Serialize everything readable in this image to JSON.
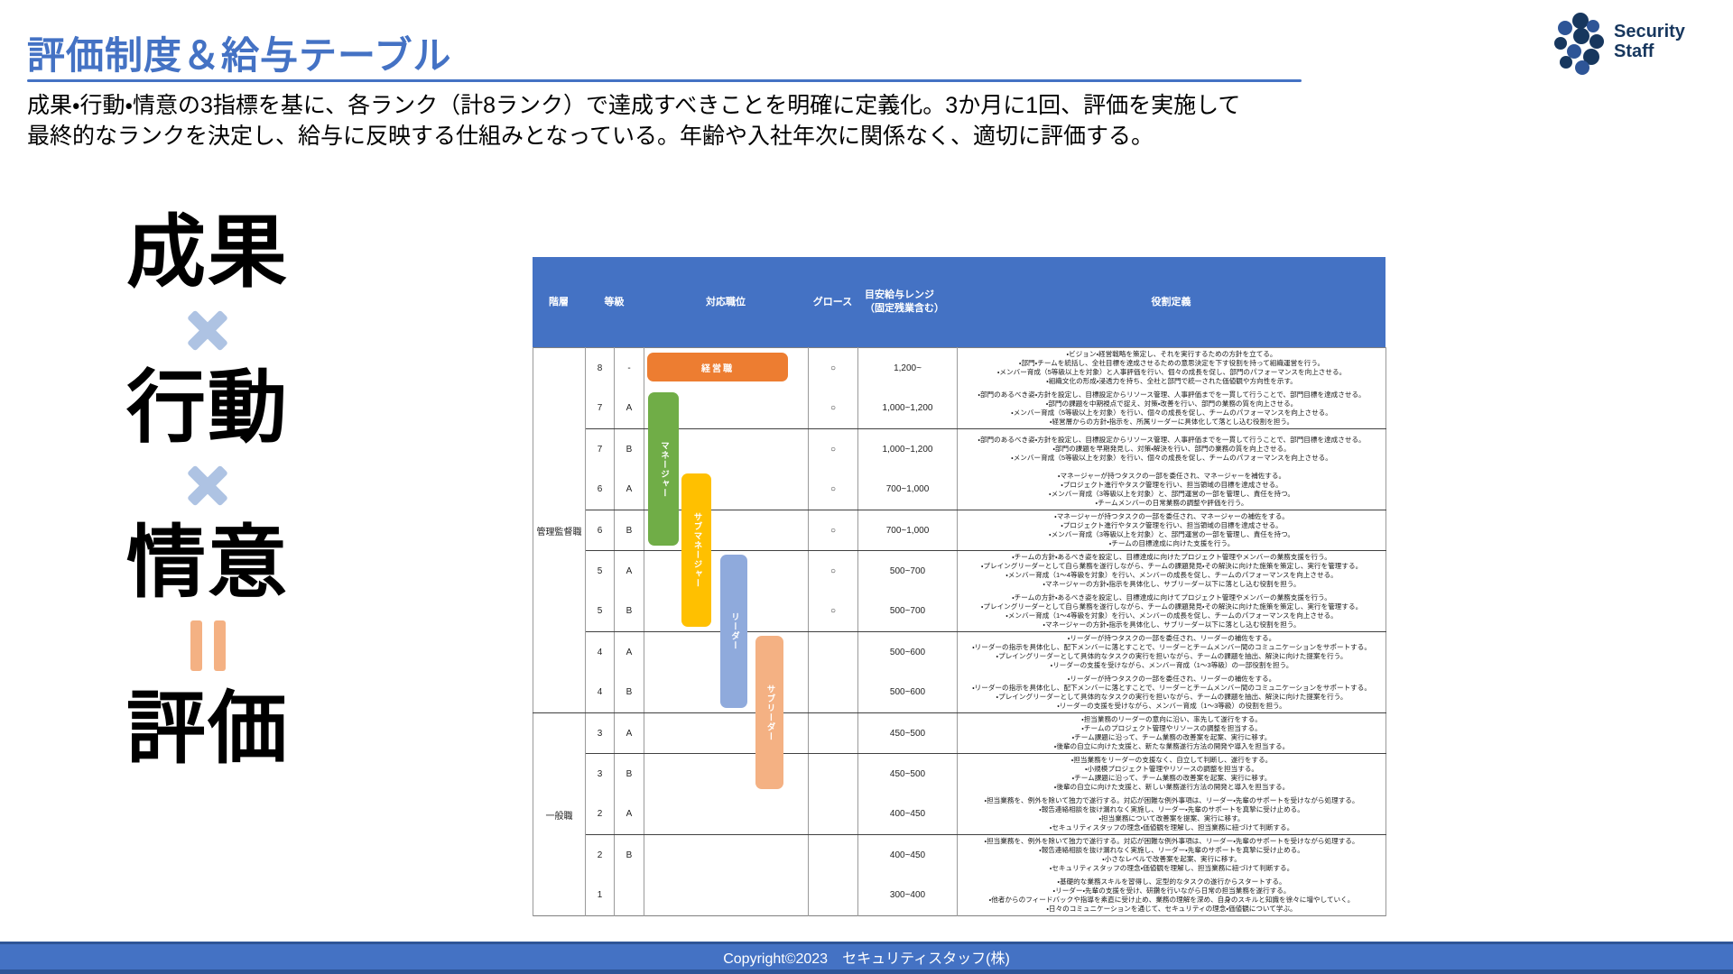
{
  "slide": {
    "title": "評価制度＆給与テーブル",
    "description_line1": "成果・行動・情意の3指標を基に、各ランク（計8ランク）で達成すべきことを明確に定義化。3か月に1回、評価を実施して",
    "description_line2": "最終的なランクを決定し、給与に反映する仕組みとなっている。年齢や入社年次に関係なく、適切に評価する。",
    "footer_text": "Copyright©2023　セキュリティスタッフ(株)"
  },
  "logo": {
    "line1": "Security",
    "line2": "Staff"
  },
  "colors": {
    "accent_blue": "#4472C4",
    "dark_blue": "#2E5597",
    "navy": "#17375E",
    "orange": "#ED7D31",
    "green": "#70AD47",
    "yellow": "#FFC000",
    "light_blue": "#8FAADC",
    "salmon": "#F4B183",
    "motif_cross": "#AEC3E3",
    "motif_equals": "#F4B183"
  },
  "motif": {
    "items": [
      {
        "kind": "term",
        "text": "成果"
      },
      {
        "kind": "icon",
        "name": "multiply-icon",
        "symbol": "✕"
      },
      {
        "kind": "term",
        "text": "行動"
      },
      {
        "kind": "icon",
        "name": "multiply-icon",
        "symbol": "✕"
      },
      {
        "kind": "term",
        "text": "情意"
      },
      {
        "kind": "icon",
        "name": "equals-icon",
        "symbol": "＝"
      },
      {
        "kind": "term",
        "text": "評価"
      }
    ]
  },
  "table": {
    "headers": {
      "tier": "階層",
      "grade": "等級",
      "position": "対応職位",
      "growth": "グロース",
      "salary_line1": "目安給与レンジ",
      "salary_line2": "（固定残業含む）",
      "role": "役割定義"
    },
    "tiers": [
      {
        "label": "管理監督職",
        "row_start": 0,
        "row_end": 8
      },
      {
        "label": "一般職",
        "row_start": 9,
        "row_end": 13
      }
    ],
    "position_boxes": [
      {
        "id": "exec",
        "label": "経営職",
        "color_key": "orange"
      },
      {
        "id": "manager",
        "label": "マネージャー",
        "color_key": "green"
      },
      {
        "id": "submanager",
        "label": "サブマネージャー",
        "color_key": "yellow"
      },
      {
        "id": "leader",
        "label": "リーダー",
        "color_key": "light_blue"
      },
      {
        "id": "subleader",
        "label": "サブリーダー",
        "color_key": "salmon"
      }
    ],
    "group_end_rows": [
      1,
      3,
      4,
      6,
      8,
      9,
      11
    ],
    "rows": [
      {
        "grade": "8",
        "sub": "-",
        "growth": "○",
        "salary": "1,200~",
        "roles": [
          "・ビジョン・経営戦略を策定し、それを実行するための方針を立てる。",
          "・部門・チームを統括し、全社目標を達成させるための意思決定を下す役割を持って組織運営を行う。",
          "・メンバー育成（5等級以上を対象）と人事評価を行い、個々の成長を促し、部門のパフォーマンスを向上させる。",
          "・組織文化の形成・浸透力を持ち、全社と部門で統一された価値観や方向性を示す。"
        ]
      },
      {
        "grade": "7",
        "sub": "A",
        "growth": "○",
        "salary": "1,000~1,200",
        "roles": [
          "・部門のあるべき姿・方針を設定し、目標設定からリソース管理、人事評価までを一貫して行うことで、部門目標を達成させる。",
          "・部門の課題を中期視点で捉え、対策・改善を行い、部門の業務の質を向上させる。",
          "・メンバー育成（5等級以上を対象）を行い、個々の成長を促し、チームのパフォーマンスを向上させる。",
          "・経営層からの方針・指示を、所属リーダーに具体化して落とし込む役割を担う。"
        ]
      },
      {
        "grade": "7",
        "sub": "B",
        "growth": "○",
        "salary": "1,000~1,200",
        "roles": [
          "・部門のあるべき姿・方針を設定し、目標設定からリソース管理、人事評価までを一貫して行うことで、部門目標を達成させる。",
          "・部門の課題を早期発見し、対策・解決を行い、部門の業務の質を向上させる。",
          "・メンバー育成（5等級以上を対象）を行い、個々の成長を促し、チームのパフォーマンスを向上させる。"
        ]
      },
      {
        "grade": "6",
        "sub": "A",
        "growth": "○",
        "salary": "700~1,000",
        "roles": [
          "・マネージャーが持つタスクの一部を委任され、マネージャーを補佐する。",
          "・プロジェクト進行やタスク管理を行い、担当領域の目標を達成させる。",
          "・メンバー育成（3等級以上を対象）と、部門運営の一部を管理し、責任を持つ。",
          "・チームメンバーの日常業務の調整や評価を行う。"
        ]
      },
      {
        "grade": "6",
        "sub": "B",
        "growth": "○",
        "salary": "700~1,000",
        "roles": [
          "・マネージャーが持つタスクの一部を委任され、マネージャーの補佐をする。",
          "・プロジェクト進行やタスク管理を行い、担当領域の目標を達成させる。",
          "・メンバー育成（3等級以上を対象）と、部門運営の一部を管理し、責任を持つ。",
          "・チームの目標達成に向けた支援を行う。"
        ]
      },
      {
        "grade": "5",
        "sub": "A",
        "growth": "○",
        "salary": "500~700",
        "roles": [
          "・チームの方針・あるべき姿を設定し、目標達成に向けたプロジェクト管理やメンバーの業務支援を行う。",
          "・プレイングリーダーとして自ら業務を遂行しながら、チームの課題発見・その解決に向けた施策を策定し、実行を管理する。",
          "・メンバー育成（1～4等級を対象）を行い、メンバーの成長を促し、チームのパフォーマンスを向上させる。",
          "・マネージャーの方針・指示を具体化し、サブリーダー以下に落とし込む役割を担う。"
        ]
      },
      {
        "grade": "5",
        "sub": "B",
        "growth": "○",
        "salary": "500~700",
        "roles": [
          "・チームの方針・あるべき姿を設定し、目標達成に向けてプロジェクト管理やメンバーの業務支援を行う。",
          "・プレイングリーダーとして自ら業務を遂行しながら、チームの課題発見・その解決に向けた施策を策定し、実行を管理する。",
          "・メンバー育成（1～4等級を対象）を行い、メンバーの成長を促し、チームのパフォーマンスを向上させる。",
          "・マネージャーの方針・指示を具体化し、サブリーダー以下に落とし込む役割を担う。"
        ]
      },
      {
        "grade": "4",
        "sub": "A",
        "growth": "",
        "salary": "500~600",
        "roles": [
          "・リーダーが持つタスクの一部を委任され、リーダーの補佐をする。",
          "・リーダーの指示を具体化し、配下メンバーに落とすことで、リーダーとチームメンバー間のコミュニケーションをサポートする。",
          "・プレイングリーダーとして具体的なタスクの実行を担いながら、チームの課題を抽出、解決に向けた提案を行う。",
          "・リーダーの支援を受けながら、メンバー育成（1～3等級）の一部役割を担う。"
        ]
      },
      {
        "grade": "4",
        "sub": "B",
        "growth": "",
        "salary": "500~600",
        "roles": [
          "・リーダーが持つタスクの一部を委任され、リーダーの補佐をする。",
          "・リーダーの指示を具体化し、配下メンバーに落とすことで、リーダーとチームメンバー間のコミュニケーションをサポートする。",
          "・プレイングリーダーとして具体的なタスクの実行を担いながら、チームの課題を抽出、解決に向けた提案を行う。",
          "・リーダーの支援を受けながら、メンバー育成（1～3等級）の役割を担う。"
        ]
      },
      {
        "grade": "3",
        "sub": "A",
        "growth": "",
        "salary": "450~500",
        "roles": [
          "・担当業務のリーダーの意向に沿い、率先して遂行をする。",
          "・チームのプロジェクト管理やリソースの調整を担当する。",
          "・チーム課題に沿って、チーム業務の改善案を起案、実行に移す。",
          "・後輩の自立に向けた支援と、新たな業務遂行方法の開発や導入を担当する。"
        ]
      },
      {
        "grade": "3",
        "sub": "B",
        "growth": "",
        "salary": "450~500",
        "roles": [
          "・担当業務をリーダーの支援なく、自立して判断し、遂行をする。",
          "・小規模プロジェクト管理やリソースの調整を担当する。",
          "・チーム課題に沿って、チーム業務の改善案を起案、実行に移す。",
          "・後輩の自立に向けた支援と、新しい業務遂行方法の開発と導入を担当する。"
        ]
      },
      {
        "grade": "2",
        "sub": "A",
        "growth": "",
        "salary": "400~450",
        "roles": [
          "・担当業務を、例外を除いて独力で遂行する。対応が困難な例外事項は、リーダー・先輩のサポートを受けながら処理する。",
          "・報告連絡相談を抜け漏れなく実施し、リーダー・先輩のサポートを真摯に受け止める。",
          "・担当業務について改善案を提案、実行に移す。",
          "・セキュリティスタッフの理念・価値観を理解し、担当業務に紐づけて判断する。"
        ]
      },
      {
        "grade": "2",
        "sub": "B",
        "growth": "",
        "salary": "400~450",
        "roles": [
          "・担当業務を、例外を除いて独力で遂行する。対応が困難な例外事項は、リーダー・先輩のサポートを受けながら処理する。",
          "・報告連絡相談を抜け漏れなく実施し、リーダー・先輩のサポートを真摯に受け止める。",
          "・小さなレベルで改善案を起案、実行に移す。",
          "・セキュリティスタッフの理念・価値観を理解し、担当業務に紐づけて判断する。"
        ]
      },
      {
        "grade": "1",
        "sub": "",
        "growth": "",
        "salary": "300~400",
        "roles": [
          "・基礎的な業務スキルを習得し、定型的なタスクの遂行からスタートする。",
          "・リーダー・先輩の支援を受け、研鑽を行いながら日常の担当業務を遂行する。",
          "・他者からのフィードバックや指導を素直に受け止め、業務の理解を深め、自身のスキルと知識を徐々に増やしていく。",
          "・日々のコミュニケーションを通じて、セキュリティの理念・価値観について学ぶ。"
        ]
      }
    ]
  }
}
